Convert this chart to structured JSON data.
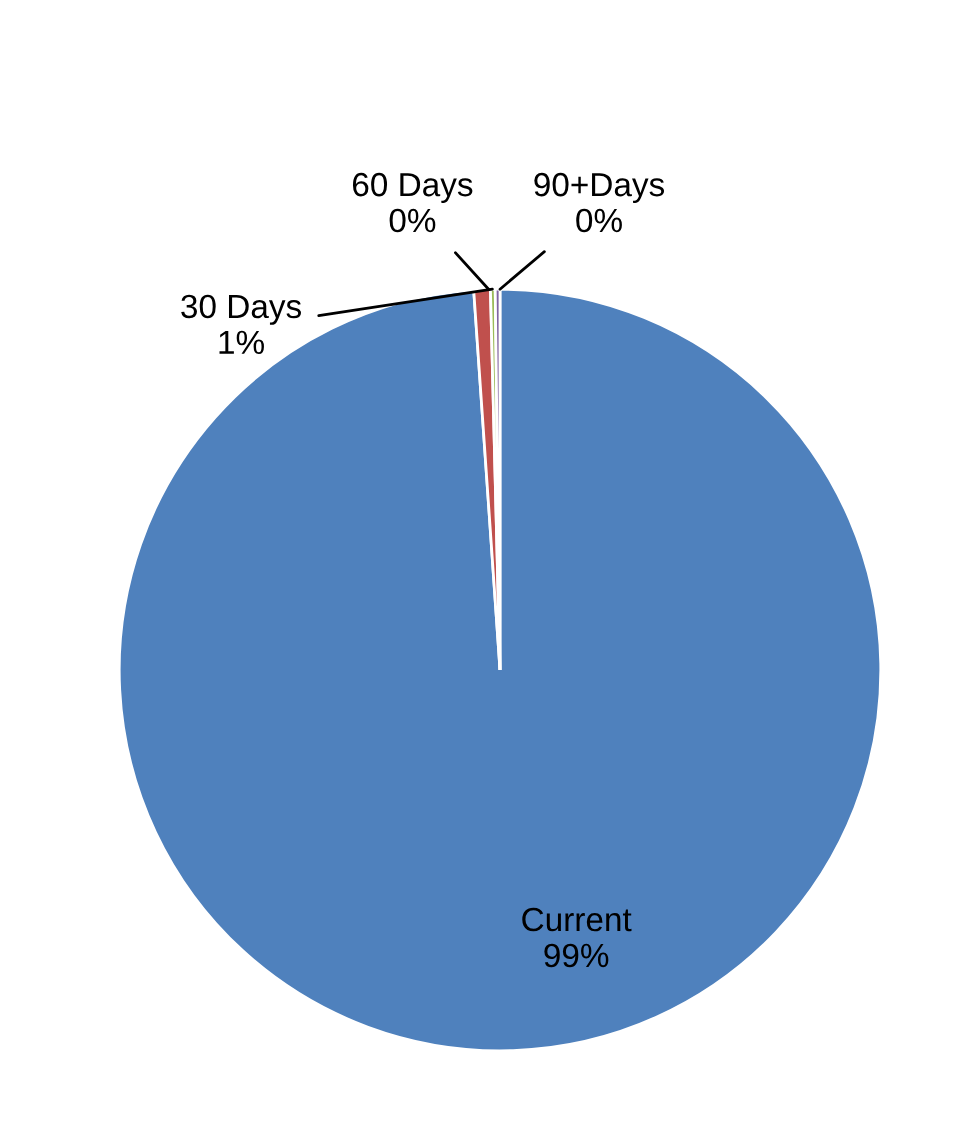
{
  "chart_data": {
    "type": "pie",
    "categories": [
      "Current",
      "30 Days",
      "60 Days",
      "90+Days"
    ],
    "values": [
      98.9,
      0.7,
      0.2,
      0.2
    ],
    "colors": [
      "#4f81bd",
      "#c0504d",
      "#9bbb59",
      "#8064a2"
    ],
    "value_labels": [
      "99%",
      "1%",
      "0%",
      "0%"
    ]
  }
}
